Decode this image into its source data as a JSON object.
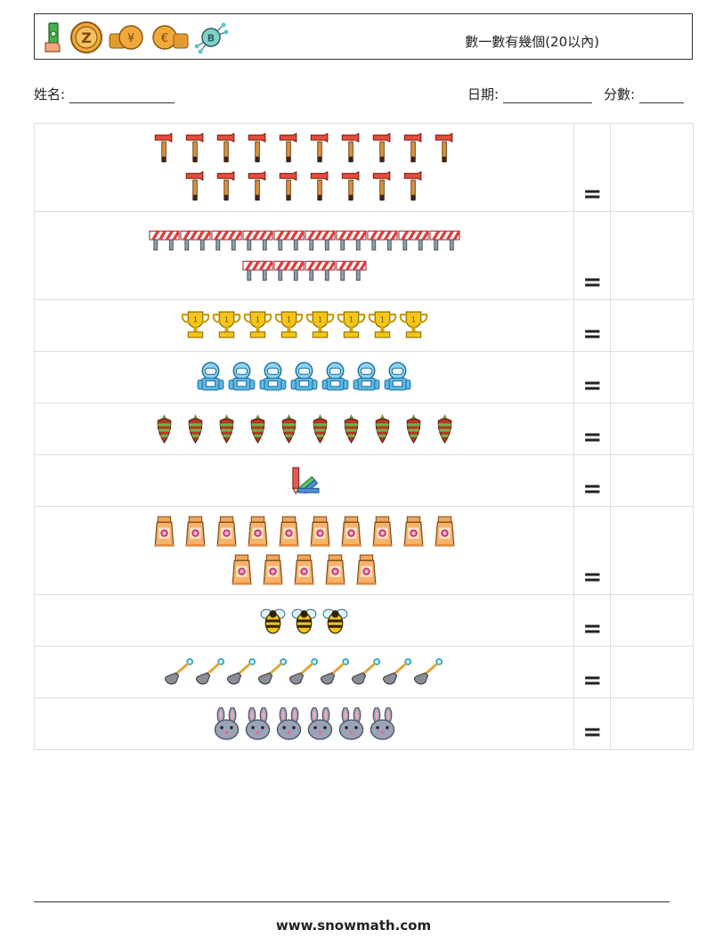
{
  "header": {
    "title": "數一數有幾個(20以內)",
    "icons": [
      "money-hand-icon",
      "coin-z-icon",
      "coin-stack-yen-icon",
      "coin-stack-euro-icon",
      "bitcoin-network-icon"
    ]
  },
  "info": {
    "name_label": "姓名:",
    "date_label": "日期:",
    "score_label": "分數:"
  },
  "equals": "=",
  "rows": [
    {
      "item": "axe-icon",
      "count": 18,
      "per_line": [
        10,
        8
      ]
    },
    {
      "item": "barrier-icon",
      "count": 14,
      "per_line": [
        10,
        4
      ]
    },
    {
      "item": "trophy-icon",
      "count": 8,
      "per_line": [
        8
      ]
    },
    {
      "item": "astronaut-icon",
      "count": 7,
      "per_line": [
        7
      ]
    },
    {
      "item": "carrot-icon",
      "count": 10,
      "per_line": [
        10
      ]
    },
    {
      "item": "crayon-set-icon",
      "count": 1,
      "per_line": [
        1
      ]
    },
    {
      "item": "sunscreen-bottle-icon",
      "count": 15,
      "per_line": [
        10,
        5
      ]
    },
    {
      "item": "bee-icon",
      "count": 3,
      "per_line": [
        3
      ]
    },
    {
      "item": "shovel-icon",
      "count": 9,
      "per_line": [
        9
      ]
    },
    {
      "item": "rabbit-icon",
      "count": 6,
      "per_line": [
        6
      ]
    }
  ],
  "footer": {
    "url": "www.snowmath.com"
  }
}
